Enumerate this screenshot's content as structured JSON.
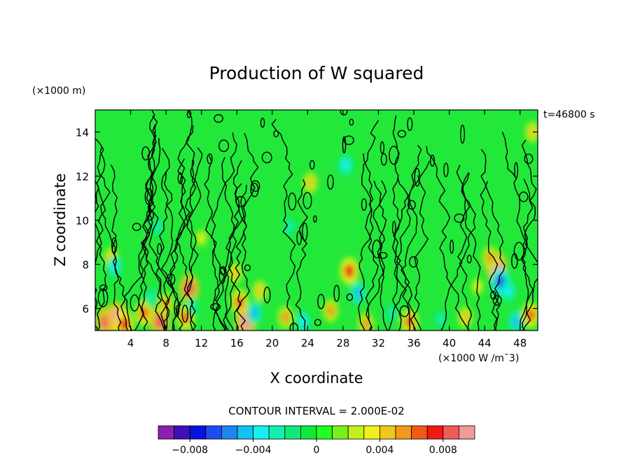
{
  "chart_data": {
    "type": "heatmap",
    "title": "Production of W squared",
    "xlabel": "X coordinate",
    "ylabel": "Z coordinate",
    "y_units": "(×1000 m)",
    "x_units": "(×1000 W /m¯3)",
    "time_label": "t=46800 s",
    "contour_label": "CONTOUR INTERVAL = 2.000E-02",
    "xlim": [
      0,
      50
    ],
    "ylim": [
      5,
      15
    ],
    "x_ticks": [
      4,
      8,
      12,
      16,
      20,
      24,
      28,
      32,
      36,
      40,
      44,
      48
    ],
    "y_ticks": [
      6,
      8,
      10,
      12,
      14
    ],
    "colorbar": {
      "min": -0.01,
      "max": 0.01,
      "tick_labels": [
        "−0.008",
        "−0.004",
        "0",
        "0.004",
        "0.008"
      ],
      "tick_values": [
        -0.008,
        -0.004,
        0,
        0.004,
        0.008
      ],
      "colors": [
        "#8a1fb0",
        "#3a12b8",
        "#0a10e0",
        "#1f4cf0",
        "#1e86f0",
        "#12c2f2",
        "#14f0f0",
        "#12f0b0",
        "#12e87a",
        "#12e83a",
        "#22ff22",
        "#7af01a",
        "#c2f01a",
        "#f0f01a",
        "#f0c81a",
        "#f09a1a",
        "#f05a14",
        "#f01a14",
        "#f05a5a",
        "#f09a9a"
      ]
    },
    "background_color": "#22e83a",
    "hotspots": [
      {
        "x": 1.2,
        "z": 5.4,
        "v": 0.008
      },
      {
        "x": 2.5,
        "z": 5.6,
        "v": 0.009
      },
      {
        "x": 3.3,
        "z": 5.3,
        "v": 0.007
      },
      {
        "x": 1.8,
        "z": 8.3,
        "v": 0.004
      },
      {
        "x": 2.2,
        "z": 7.9,
        "v": -0.004
      },
      {
        "x": 5.5,
        "z": 5.8,
        "v": 0.006
      },
      {
        "x": 6.3,
        "z": 6.5,
        "v": -0.003
      },
      {
        "x": 7.3,
        "z": 5.4,
        "v": 0.008
      },
      {
        "x": 8.0,
        "z": 6.2,
        "v": 0.005
      },
      {
        "x": 10.6,
        "z": 6.9,
        "v": 0.008
      },
      {
        "x": 10.2,
        "z": 5.6,
        "v": 0.006
      },
      {
        "x": 11.0,
        "z": 6.1,
        "v": -0.003
      },
      {
        "x": 15.8,
        "z": 7.6,
        "v": 0.004
      },
      {
        "x": 16.3,
        "z": 6.3,
        "v": 0.006
      },
      {
        "x": 17.0,
        "z": 5.4,
        "v": 0.009
      },
      {
        "x": 18.0,
        "z": 5.8,
        "v": -0.005
      },
      {
        "x": 18.6,
        "z": 6.8,
        "v": 0.004
      },
      {
        "x": 21.5,
        "z": 5.6,
        "v": 0.005
      },
      {
        "x": 23.5,
        "z": 5.4,
        "v": -0.004
      },
      {
        "x": 26.6,
        "z": 5.9,
        "v": 0.005
      },
      {
        "x": 28.7,
        "z": 7.7,
        "v": 0.007
      },
      {
        "x": 29.7,
        "z": 6.7,
        "v": -0.005
      },
      {
        "x": 30.6,
        "z": 5.3,
        "v": 0.005
      },
      {
        "x": 35.5,
        "z": 5.4,
        "v": 0.006
      },
      {
        "x": 33.5,
        "z": 5.8,
        "v": -0.003
      },
      {
        "x": 39.0,
        "z": 5.5,
        "v": -0.003
      },
      {
        "x": 41.8,
        "z": 5.6,
        "v": 0.004
      },
      {
        "x": 45.3,
        "z": 7.9,
        "v": 0.009
      },
      {
        "x": 45.8,
        "z": 7.2,
        "v": -0.007
      },
      {
        "x": 46.7,
        "z": 6.8,
        "v": -0.004
      },
      {
        "x": 47.6,
        "z": 5.4,
        "v": -0.005
      },
      {
        "x": 49.2,
        "z": 5.7,
        "v": 0.006
      },
      {
        "x": 24.3,
        "z": 11.7,
        "v": 0.004
      },
      {
        "x": 28.3,
        "z": 12.5,
        "v": -0.004
      },
      {
        "x": 22.0,
        "z": 9.7,
        "v": -0.003
      },
      {
        "x": 7.0,
        "z": 9.7,
        "v": -0.003
      },
      {
        "x": 12.0,
        "z": 9.2,
        "v": 0.003
      },
      {
        "x": 49.4,
        "z": 14.0,
        "v": 0.004
      },
      {
        "x": 44.6,
        "z": 8.3,
        "v": 0.005
      },
      {
        "x": 43.2,
        "z": 7.0,
        "v": 0.003
      }
    ]
  }
}
